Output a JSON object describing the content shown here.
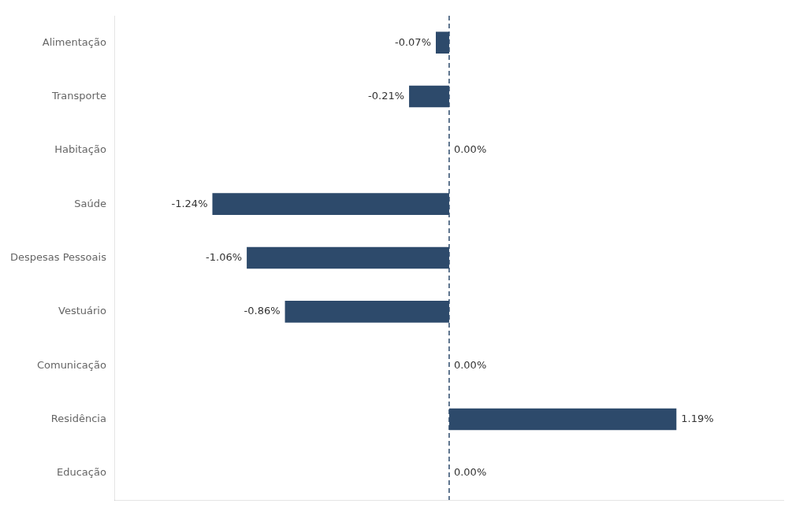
{
  "chart_data": {
    "type": "bar",
    "orientation": "horizontal",
    "categories": [
      "Alimentação",
      "Transporte",
      "Habitação",
      "Saúde",
      "Despesas Pessoais",
      "Vestuário",
      "Comunicação",
      "Residência",
      "Educação"
    ],
    "values": [
      -0.07,
      -0.21,
      0.0,
      -1.24,
      -1.06,
      -0.86,
      0.0,
      1.19,
      0.0
    ],
    "value_labels": [
      "-0.07%",
      "-0.21%",
      "0.00%",
      "-1.24%",
      "-1.06%",
      "-0.86%",
      "0.00%",
      "1.19%",
      "0.00%"
    ],
    "color": "#2d4a6b",
    "xlim": [
      -1.75,
      1.75
    ],
    "grid": false,
    "data_labels": true,
    "tick_labels": "y"
  }
}
